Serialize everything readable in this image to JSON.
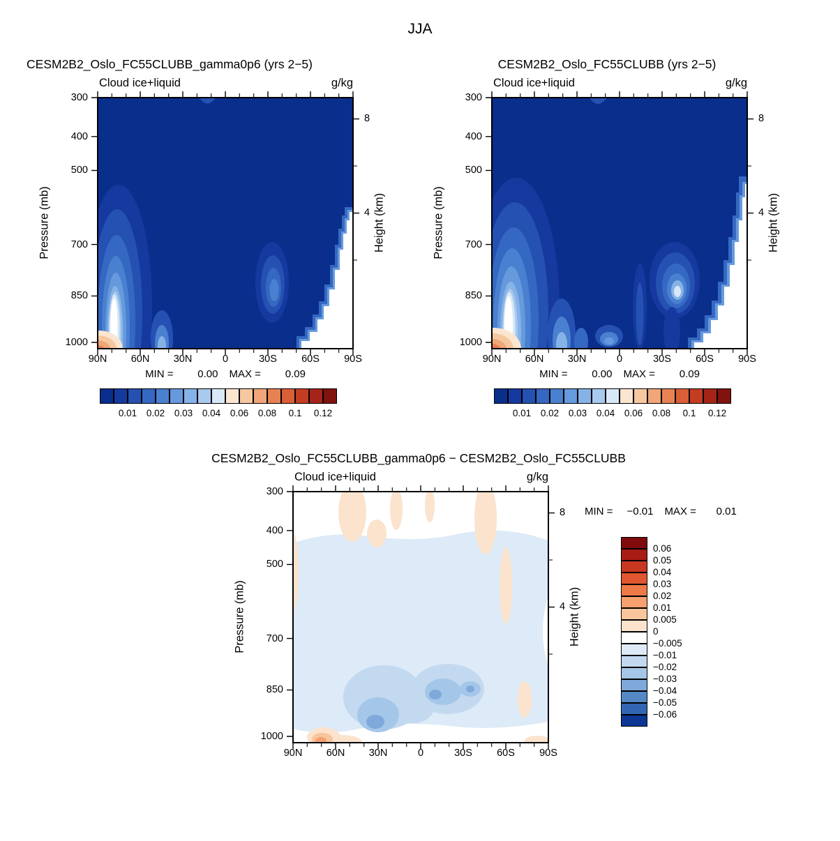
{
  "title": "JJA",
  "colors": {
    "levels_palette": [
      "#0a2e8c",
      "#15399f",
      "#2551b2",
      "#3568c2",
      "#4a80d0",
      "#669add",
      "#86b3e7",
      "#a9c9ef",
      "#d8e8f7",
      "#fae6d0",
      "#f6c8a0",
      "#f0a678",
      "#e88252",
      "#da5e36",
      "#c43d23",
      "#a62417",
      "#82120e"
    ],
    "diff_palette": [
      "#7f0b0d",
      "#a81c14",
      "#c8371f",
      "#e0562e",
      "#ee7a48",
      "#f5a06e",
      "#f9c59c",
      "#fbe3cd",
      "#ffffff",
      "#ddeaf7",
      "#c3d9f0",
      "#a4c6e8",
      "#7fa9da",
      "#5588c6",
      "#3366b2",
      "#0d3694"
    ]
  },
  "chart_data": [
    {
      "type": "heatmap",
      "title": "CESM2B2_Oslo_FC55CLUBB_gamma0p6 (yrs 2−5)",
      "field_label": "Cloud ice+liquid",
      "units": "g/kg",
      "x_ticks": [
        "90N",
        "60N",
        "30N",
        "0",
        "30S",
        "60S",
        "90S"
      ],
      "y_left_label": "Pressure (mb)",
      "y_left_ticks": [
        "300",
        "400",
        "500",
        "700",
        "850",
        "1000"
      ],
      "y_right_label": "Height (km)",
      "y_right_ticks": [
        "8",
        "4"
      ],
      "stats": {
        "min_label": "MIN =",
        "min_value": "0.00",
        "max_label": "MAX =",
        "max_value": "0.09"
      },
      "colorbar_labels": [
        "0.01",
        "0.02",
        "0.03",
        "0.04",
        "0.06",
        "0.08",
        "0.1",
        "0.12"
      ]
    },
    {
      "type": "heatmap",
      "title": "CESM2B2_Oslo_FC55CLUBB (yrs 2−5)",
      "field_label": "Cloud ice+liquid",
      "units": "g/kg",
      "x_ticks": [
        "90N",
        "60N",
        "30N",
        "0",
        "30S",
        "60S",
        "90S"
      ],
      "y_left_label": "Pressure (mb)",
      "y_left_ticks": [
        "300",
        "400",
        "500",
        "700",
        "850",
        "1000"
      ],
      "y_right_label": "Height (km)",
      "y_right_ticks": [
        "8",
        "4"
      ],
      "stats": {
        "min_label": "MIN =",
        "min_value": "0.00",
        "max_label": "MAX =",
        "max_value": "0.09"
      },
      "colorbar_labels": [
        "0.01",
        "0.02",
        "0.03",
        "0.04",
        "0.06",
        "0.08",
        "0.1",
        "0.12"
      ]
    },
    {
      "type": "heatmap",
      "title": "CESM2B2_Oslo_FC55CLUBB_gamma0p6 − CESM2B2_Oslo_FC55CLUBB",
      "field_label": "Cloud ice+liquid",
      "units": "g/kg",
      "x_ticks": [
        "90N",
        "60N",
        "30N",
        "0",
        "30S",
        "60S",
        "90S"
      ],
      "y_left_label": "Pressure (mb)",
      "y_left_ticks": [
        "300",
        "400",
        "500",
        "700",
        "850",
        "1000"
      ],
      "y_right_label": "Height (km)",
      "y_right_ticks": [
        "8",
        "4"
      ],
      "stats": {
        "min_label": "MIN =",
        "min_value": "−0.01",
        "max_label": "MAX =",
        "max_value": "0.01"
      },
      "colorbar_labels": [
        "0.06",
        "0.05",
        "0.04",
        "0.03",
        "0.02",
        "0.01",
        "0.005",
        "0",
        "−0.005",
        "−0.01",
        "−0.02",
        "−0.03",
        "−0.04",
        "−0.05",
        "−0.06"
      ]
    }
  ]
}
